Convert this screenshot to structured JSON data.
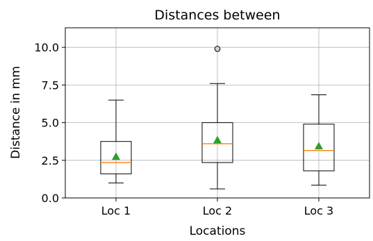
{
  "chart_data": {
    "type": "box",
    "title": "Distances between",
    "xlabel": "Locations",
    "ylabel": "Distance in mm",
    "ylim": [
      0,
      11.3
    ],
    "yticks": [
      "0.0",
      "2.5",
      "5.0",
      "7.5",
      "10.0"
    ],
    "ytick_values": [
      0,
      2.5,
      5.0,
      7.5,
      10.0
    ],
    "grid": true,
    "categories": [
      "Loc 1",
      "Loc 2",
      "Loc 3"
    ],
    "boxes": [
      {
        "whisker_low": 1.0,
        "q1": 1.6,
        "median": 2.35,
        "q3": 3.75,
        "whisker_high": 6.5,
        "mean": 2.75,
        "outliers": []
      },
      {
        "whisker_low": 0.6,
        "q1": 2.35,
        "median": 3.6,
        "q3": 5.0,
        "whisker_high": 7.6,
        "mean": 3.85,
        "outliers": [
          9.9
        ]
      },
      {
        "whisker_low": 0.85,
        "q1": 1.8,
        "median": 3.15,
        "q3": 4.9,
        "whisker_high": 6.85,
        "mean": 3.45,
        "outliers": []
      }
    ],
    "colors": {
      "box": "#000000",
      "median": "#ff7f0e",
      "mean": "#2ca02c",
      "grid": "#b0b0b0",
      "flier": "#000000"
    }
  }
}
